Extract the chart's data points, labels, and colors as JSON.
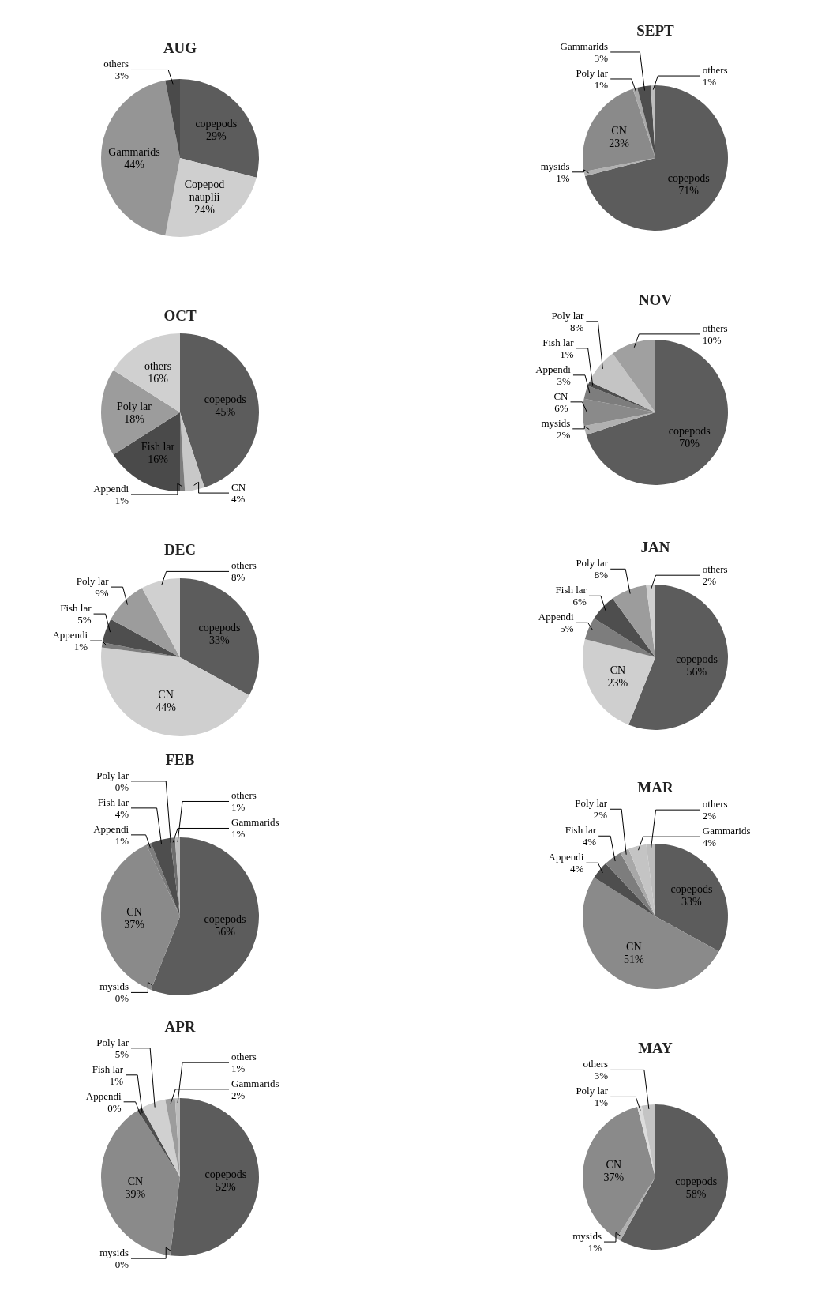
{
  "chart_data": [
    {
      "type": "pie",
      "title": "AUG",
      "categories": [
        "copepods",
        "Copepod nauplii",
        "Gammarids",
        "others"
      ],
      "values": [
        29,
        24,
        44,
        3
      ],
      "value_labels": [
        "29%",
        "24%",
        "44%",
        "3%"
      ],
      "colors": [
        "#5c5c5c",
        "#cfcfcf",
        "#959595",
        "#4a4a4a"
      ]
    },
    {
      "type": "pie",
      "title": "SEPT",
      "categories": [
        "copepods",
        "mysids",
        "CN",
        "Poly lar",
        "Gammarids",
        "others"
      ],
      "values": [
        71,
        1,
        23,
        1,
        3,
        1
      ],
      "value_labels": [
        "71%",
        "1%",
        "23%",
        "1%",
        "3%",
        "1%"
      ],
      "colors": [
        "#5c5c5c",
        "#b0b0b0",
        "#8a8a8a",
        "#a8a8a8",
        "#4e4e4e",
        "#bdbdbd"
      ]
    },
    {
      "type": "pie",
      "title": "OCT",
      "categories": [
        "copepods",
        "CN",
        "Appendi",
        "Fish lar",
        "Poly lar",
        "others"
      ],
      "values": [
        45,
        4,
        1,
        16,
        18,
        16
      ],
      "value_labels": [
        "45%",
        "4%",
        "1%",
        "16%",
        "18%",
        "16%"
      ],
      "colors": [
        "#5c5c5c",
        "#c8c8c8",
        "#7d7d7d",
        "#4a4a4a",
        "#9c9c9c",
        "#d0d0d0"
      ]
    },
    {
      "type": "pie",
      "title": "NOV",
      "categories": [
        "copepods",
        "mysids",
        "CN",
        "Appendi",
        "Fish lar",
        "Poly lar",
        "others"
      ],
      "values": [
        70,
        2,
        6,
        3,
        1,
        8,
        10
      ],
      "value_labels": [
        "70%",
        "2%",
        "6%",
        "3%",
        "1%",
        "8%",
        "10%"
      ],
      "colors": [
        "#5c5c5c",
        "#b0b0b0",
        "#8a8a8a",
        "#7d7d7d",
        "#4e4e4e",
        "#c4c4c4",
        "#a0a0a0"
      ]
    },
    {
      "type": "pie",
      "title": "DEC",
      "categories": [
        "copepods",
        "CN",
        "Appendi",
        "Fish lar",
        "Poly lar",
        "others"
      ],
      "values": [
        33,
        44,
        1,
        5,
        9,
        8
      ],
      "value_labels": [
        "33%",
        "44%",
        "1%",
        "5%",
        "9%",
        "8%"
      ],
      "colors": [
        "#5c5c5c",
        "#cfcfcf",
        "#7d7d7d",
        "#4e4e4e",
        "#9c9c9c",
        "#d0d0d0"
      ]
    },
    {
      "type": "pie",
      "title": "JAN",
      "categories": [
        "copepods",
        "CN",
        "Appendi",
        "Fish lar",
        "Poly lar",
        "others"
      ],
      "values": [
        56,
        23,
        5,
        6,
        8,
        2
      ],
      "value_labels": [
        "56%",
        "23%",
        "5%",
        "6%",
        "8%",
        "2%"
      ],
      "colors": [
        "#5c5c5c",
        "#cfcfcf",
        "#7d7d7d",
        "#4e4e4e",
        "#9c9c9c",
        "#d0d0d0"
      ]
    },
    {
      "type": "pie",
      "title": "FEB",
      "categories": [
        "copepods",
        "mysids",
        "CN",
        "Appendi",
        "Fish lar",
        "Poly lar",
        "Gammarids",
        "others"
      ],
      "values": [
        56,
        0,
        37,
        1,
        4,
        0,
        1,
        1
      ],
      "value_labels": [
        "56%",
        "0%",
        "37%",
        "1%",
        "4%",
        "0%",
        "1%",
        "1%"
      ],
      "colors": [
        "#5c5c5c",
        "#b0b0b0",
        "#8a8a8a",
        "#7d7d7d",
        "#4e4e4e",
        "#a8a8a8",
        "#6e6e6e",
        "#bdbdbd"
      ]
    },
    {
      "type": "pie",
      "title": "MAR",
      "categories": [
        "copepods",
        "CN",
        "Appendi",
        "Fish lar",
        "Poly lar",
        "Gammarids",
        "others"
      ],
      "values": [
        33,
        51,
        4,
        4,
        2,
        4,
        2
      ],
      "value_labels": [
        "33%",
        "51%",
        "4%",
        "4%",
        "2%",
        "4%",
        "2%"
      ],
      "colors": [
        "#5c5c5c",
        "#8a8a8a",
        "#4e4e4e",
        "#7d7d7d",
        "#a8a8a8",
        "#c4c4c4",
        "#bdbdbd"
      ]
    },
    {
      "type": "pie",
      "title": "APR",
      "categories": [
        "copepods",
        "mysids",
        "CN",
        "Appendi",
        "Fish lar",
        "Poly lar",
        "Gammarids",
        "others"
      ],
      "values": [
        52,
        0,
        39,
        0,
        1,
        5,
        2,
        1
      ],
      "value_labels": [
        "52%",
        "0%",
        "39%",
        "0%",
        "1%",
        "5%",
        "2%",
        "1%"
      ],
      "colors": [
        "#5c5c5c",
        "#b0b0b0",
        "#8a8a8a",
        "#7d7d7d",
        "#4e4e4e",
        "#d0d0d0",
        "#9c9c9c",
        "#bdbdbd"
      ]
    },
    {
      "type": "pie",
      "title": "MAY",
      "categories": [
        "copepods",
        "mysids",
        "CN",
        "Poly lar",
        "others"
      ],
      "values": [
        58,
        1,
        37,
        1,
        3
      ],
      "value_labels": [
        "58%",
        "1%",
        "37%",
        "1%",
        "3%"
      ],
      "colors": [
        "#5c5c5c",
        "#b0b0b0",
        "#8a8a8a",
        "#dcdcdc",
        "#c4c4c4"
      ]
    }
  ]
}
